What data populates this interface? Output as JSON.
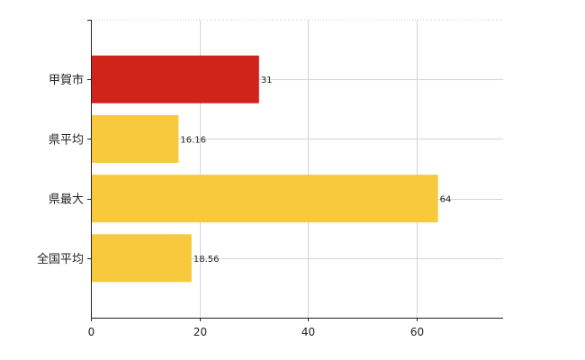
{
  "chart_data": {
    "type": "bar",
    "orientation": "horizontal",
    "categories": [
      "甲賀市",
      "県平均",
      "県最大",
      "全国平均"
    ],
    "values": [
      31,
      16.16,
      64,
      18.56
    ],
    "data_labels": [
      "31",
      "16.16",
      "64",
      "18.56"
    ],
    "bar_colors": [
      "#d0241a",
      "#f8c93c",
      "#f8c93c",
      "#f8c93c"
    ],
    "xlim": [
      0,
      76
    ],
    "xticks": [
      0,
      20,
      40,
      60
    ],
    "grid": true,
    "title": "",
    "xlabel": "",
    "ylabel": ""
  },
  "colors": {
    "grid": "#d4d4d4",
    "axis": "#222222"
  }
}
